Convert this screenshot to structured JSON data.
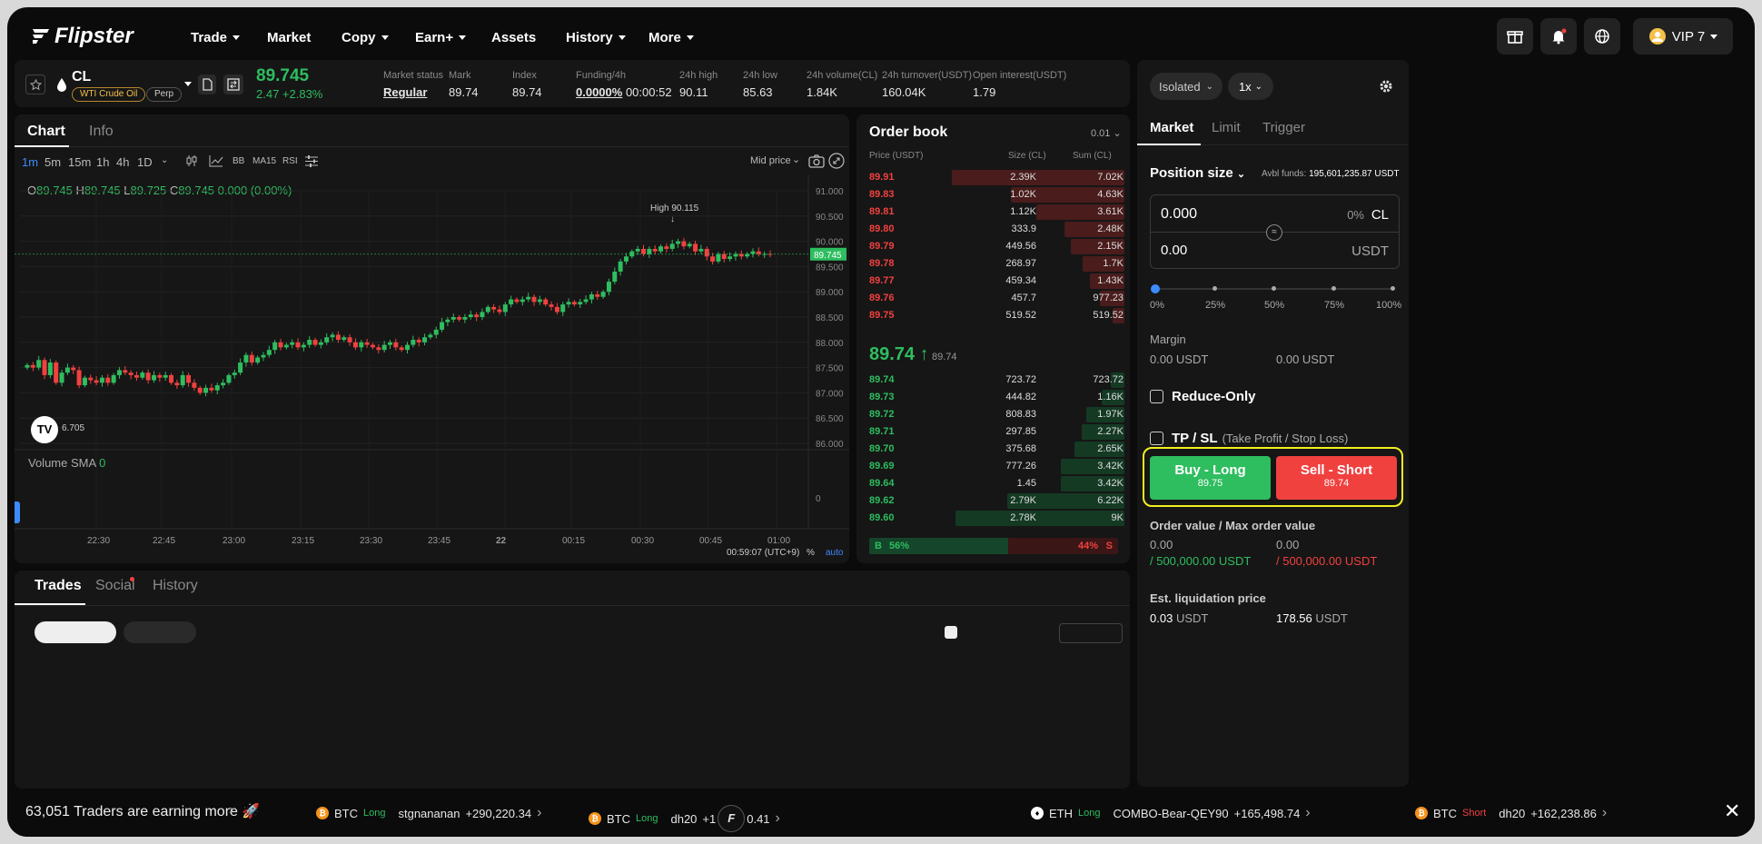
{
  "brand": {
    "name": "Flipster"
  },
  "nav": [
    {
      "label": "Trade",
      "caret": true
    },
    {
      "label": "Market",
      "caret": false
    },
    {
      "label": "Copy",
      "caret": true
    },
    {
      "label": "Earn+",
      "caret": true
    },
    {
      "label": "Assets",
      "caret": false
    },
    {
      "label": "History",
      "caret": true
    },
    {
      "label": "More",
      "caret": true
    }
  ],
  "header": {
    "vip_label": "VIP 7"
  },
  "symbol": {
    "ticker": "CL",
    "name": "WTI Crude Oil",
    "type": "Perp",
    "price": "89.745",
    "change": "2.47 +2.83%",
    "stats": [
      {
        "label": "Market status",
        "value": "Regular"
      },
      {
        "label": "Mark",
        "value": "89.74"
      },
      {
        "label": "Index",
        "value": "89.74"
      },
      {
        "label": "Funding/4h",
        "value": "0.0000%",
        "extra": "00:00:52"
      },
      {
        "label": "24h high",
        "value": "90.11"
      },
      {
        "label": "24h low",
        "value": "85.63"
      },
      {
        "label": "24h volume(CL)",
        "value": "1.84K"
      },
      {
        "label": "24h turnover(USDT)",
        "value": "160.04K"
      },
      {
        "label": "Open interest(USDT)",
        "value": "1.79"
      }
    ]
  },
  "chart": {
    "tabs": [
      "Chart",
      "Info"
    ],
    "intervals": [
      "1m",
      "5m",
      "15m",
      "1h",
      "4h",
      "1D"
    ],
    "tools": [
      "BB",
      "MA15",
      "RSI"
    ],
    "mid_price_label": "Mid price",
    "ohlc": {
      "o": "89.745",
      "h": "89.745",
      "l": "89.725",
      "c": "89.745",
      "chg": "0.000 (0.00%)"
    },
    "high_label": "High 90.115",
    "last_price_tag": "89.745",
    "low_label": "6.705",
    "volume_label": "Volume SMA",
    "volume_value": "0",
    "volume_zero": "0",
    "footer_time": "00:59:07 (UTC+9)",
    "footer_pct": "%",
    "footer_auto": "auto"
  },
  "chart_data": {
    "type": "candlestick",
    "x_ticks": [
      "22:30",
      "22:45",
      "23:00",
      "23:15",
      "23:30",
      "23:45",
      "22",
      "00:15",
      "00:30",
      "00:45",
      "01:00"
    ],
    "y_ticks": [
      "91.000",
      "90.500",
      "90.000",
      "89.500",
      "89.000",
      "88.500",
      "88.000",
      "87.500",
      "87.000",
      "86.500",
      "86.000"
    ],
    "ylim": [
      86.0,
      91.0
    ],
    "close": [
      87.55,
      87.5,
      87.65,
      87.35,
      87.6,
      87.2,
      87.4,
      87.5,
      87.45,
      87.15,
      87.3,
      87.25,
      87.2,
      87.3,
      87.2,
      87.35,
      87.45,
      87.4,
      87.35,
      87.3,
      87.4,
      87.25,
      87.35,
      87.3,
      87.35,
      87.2,
      87.15,
      87.35,
      87.2,
      87.1,
      87.0,
      87.1,
      87.05,
      87.15,
      87.2,
      87.35,
      87.4,
      87.6,
      87.75,
      87.6,
      87.7,
      87.75,
      87.85,
      88.0,
      87.9,
      87.95,
      88.0,
      87.9,
      87.95,
      88.05,
      87.95,
      88.0,
      88.1,
      88.15,
      88.05,
      88.1,
      88.0,
      87.9,
      88.0,
      87.95,
      87.9,
      87.85,
      87.95,
      88.0,
      87.9,
      87.85,
      87.95,
      88.05,
      88.0,
      88.1,
      88.15,
      88.25,
      88.4,
      88.45,
      88.5,
      88.45,
      88.5,
      88.55,
      88.5,
      88.6,
      88.7,
      88.65,
      88.6,
      88.75,
      88.85,
      88.8,
      88.85,
      88.9,
      88.8,
      88.85,
      88.75,
      88.7,
      88.6,
      88.75,
      88.8,
      88.75,
      88.8,
      88.85,
      88.95,
      88.9,
      89.0,
      89.2,
      89.4,
      89.6,
      89.7,
      89.8,
      89.85,
      89.75,
      89.85,
      89.8,
      89.9,
      89.85,
      89.95,
      90.0,
      89.9,
      89.95,
      89.8,
      89.85,
      89.7,
      89.6,
      89.75,
      89.65,
      89.7,
      89.75,
      89.7,
      89.75,
      89.8,
      89.75,
      89.75,
      89.745
    ]
  },
  "order_book": {
    "title": "Order book",
    "precision": "0.01",
    "headers": [
      "Price (USDT)",
      "Size (CL)",
      "Sum (CL)"
    ],
    "asks": [
      {
        "price": "89.91",
        "size": "2.39K",
        "sum": "7.02K",
        "depth": 1.0
      },
      {
        "price": "89.83",
        "size": "1.02K",
        "sum": "4.63K",
        "depth": 0.66
      },
      {
        "price": "89.81",
        "size": "1.12K",
        "sum": "3.61K",
        "depth": 0.51
      },
      {
        "price": "89.80",
        "size": "333.9",
        "sum": "2.48K",
        "depth": 0.35
      },
      {
        "price": "89.79",
        "size": "449.56",
        "sum": "2.15K",
        "depth": 0.31
      },
      {
        "price": "89.78",
        "size": "268.97",
        "sum": "1.7K",
        "depth": 0.24
      },
      {
        "price": "89.77",
        "size": "459.34",
        "sum": "1.43K",
        "depth": 0.2
      },
      {
        "price": "89.76",
        "size": "457.7",
        "sum": "977.23",
        "depth": 0.14
      },
      {
        "price": "89.75",
        "size": "519.52",
        "sum": "519.52",
        "depth": 0.07
      }
    ],
    "mid_price": "89.74",
    "mid_mark": "89.74",
    "bids": [
      {
        "price": "89.74",
        "size": "723.72",
        "sum": "723.72",
        "depth": 0.08
      },
      {
        "price": "89.73",
        "size": "444.82",
        "sum": "1.16K",
        "depth": 0.13
      },
      {
        "price": "89.72",
        "size": "808.83",
        "sum": "1.97K",
        "depth": 0.22
      },
      {
        "price": "89.71",
        "size": "297.85",
        "sum": "2.27K",
        "depth": 0.25
      },
      {
        "price": "89.70",
        "size": "375.68",
        "sum": "2.65K",
        "depth": 0.29
      },
      {
        "price": "89.69",
        "size": "777.26",
        "sum": "3.42K",
        "depth": 0.37
      },
      {
        "price": "89.64",
        "size": "1.45",
        "sum": "3.42K",
        "depth": 0.37
      },
      {
        "price": "89.62",
        "size": "2.79K",
        "sum": "6.22K",
        "depth": 0.68
      },
      {
        "price": "89.60",
        "size": "2.78K",
        "sum": "9K",
        "depth": 0.98
      }
    ],
    "buy_ratio": "56%",
    "sell_ratio": "44%",
    "buy_letter": "B",
    "sell_letter": "S",
    "buy_fraction": 0.56
  },
  "bottom": {
    "tabs": [
      "Trades",
      "Social",
      "History"
    ]
  },
  "order": {
    "margin_mode": "Isolated",
    "leverage": "1x",
    "tabs": [
      "Market",
      "Limit",
      "Trigger"
    ],
    "position_size_label": "Position size",
    "avbl_label": "Avbl funds:",
    "avbl_value": "195,601,235.87 USDT",
    "qty_value": "0.000",
    "qty_pct": "0%",
    "qty_unit": "CL",
    "usdt_value": "0.00",
    "usdt_unit": "USDT",
    "slider_marks": [
      "0%",
      "25%",
      "50%",
      "75%",
      "100%"
    ],
    "margin_label": "Margin",
    "margin_left": "0.00 USDT",
    "margin_right": "0.00 USDT",
    "reduce_only": "Reduce-Only",
    "tpsl": "TP / SL",
    "tpsl_hint": "(Take Profit / Stop Loss)",
    "buy_label": "Buy - Long",
    "buy_price": "89.75",
    "sell_label": "Sell - Short",
    "sell_price": "89.74",
    "order_value_label": "Order value / Max order value",
    "ov_left": "0.00",
    "ov_left_max": "/ 500,000.00 USDT",
    "ov_right": "0.00",
    "ov_right_max": "/ 500,000.00 USDT",
    "liq_label": "Est. liquidation price",
    "liq_left": "0.03",
    "liq_right": "178.56",
    "liq_unit": "USDT"
  },
  "ticker": {
    "headline": "63,051 Traders are earning more 🚀",
    "items": [
      {
        "coin": "BTC",
        "dir": "Long",
        "user": "stgnananan",
        "pnl": "+290,220.34"
      },
      {
        "coin": "BTC",
        "dir": "Long",
        "user": "dh20",
        "pnl": "+1",
        "pnl2": "0.41"
      },
      {
        "coin": "ETH",
        "dir": "Long",
        "user": "COMBO-Bear-QEY90",
        "pnl": "+165,498.74"
      },
      {
        "coin": "BTC",
        "dir": "Short",
        "user": "dh20",
        "pnl": "+162,238.86"
      }
    ]
  }
}
